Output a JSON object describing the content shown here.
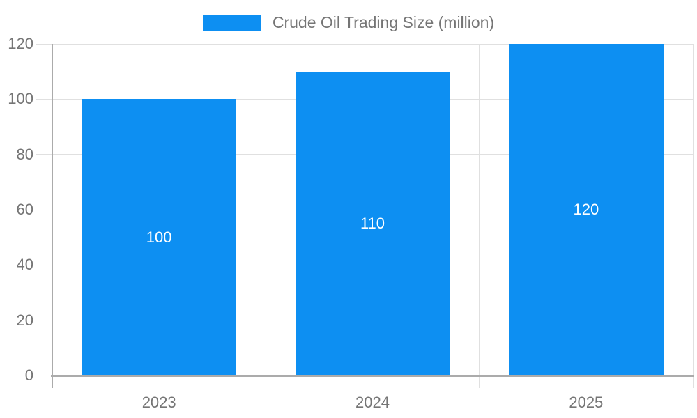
{
  "legend": {
    "label": "Crude Oil Trading Size (million)"
  },
  "chart_data": {
    "type": "bar",
    "title": "",
    "categories": [
      "2023",
      "2024",
      "2025"
    ],
    "series": [
      {
        "name": "Crude Oil Trading Size (million)",
        "values": [
          100,
          110,
          120
        ]
      }
    ],
    "values": [
      100,
      110,
      120
    ],
    "bar_labels": [
      "100",
      "110",
      "120"
    ],
    "xlabel": "",
    "ylabel": "",
    "ylim": [
      0,
      120
    ],
    "yticks": [
      0,
      20,
      40,
      60,
      80,
      100,
      120
    ],
    "legend_position": "top-center",
    "grid": true,
    "colors": {
      "bar": "#0d8ff2",
      "grid": "#e0e0e0",
      "axis": "#ababab",
      "text": "#757575",
      "bar_label": "#ffffff",
      "background": "#ffffff"
    }
  }
}
